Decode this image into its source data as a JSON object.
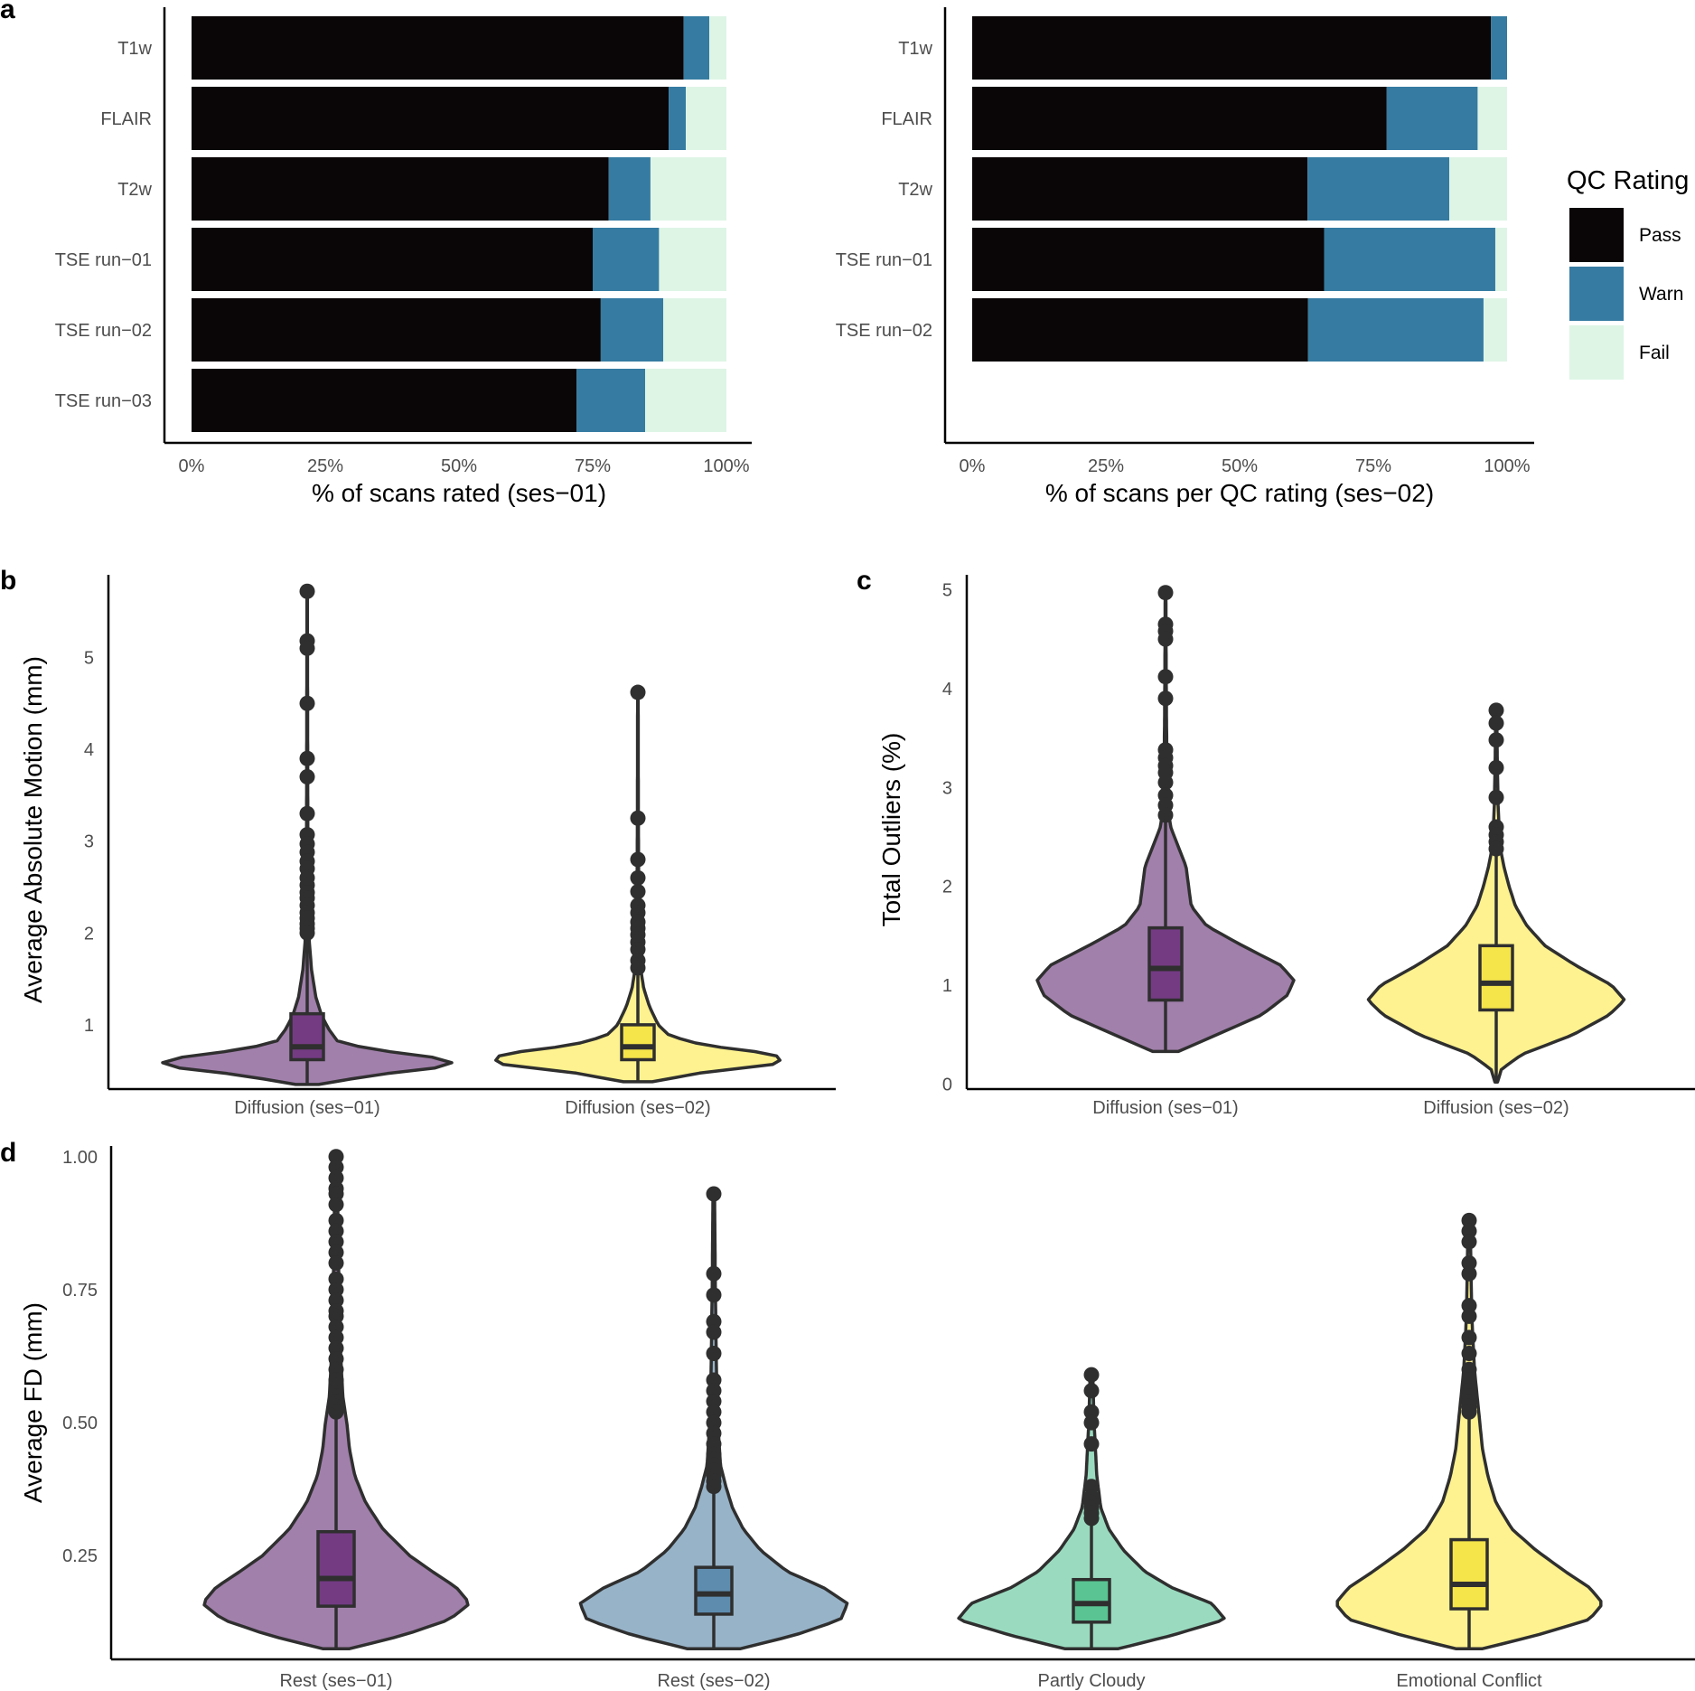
{
  "colors": {
    "pass": "#0a0506",
    "warn": "#357ba2",
    "fail": "#def5e5",
    "violin_purple": "#a180ab",
    "box_purple": "#743b83",
    "violin_yellow": "#fdf28f",
    "box_yellow": "#f5e44a",
    "violin_blue": "#97b3c8",
    "box_blue": "#5e8caf",
    "violin_green": "#9adbc0",
    "box_green": "#5ac493",
    "outline": "#2f2f2f"
  },
  "legend": {
    "title": "QC Rating",
    "items": [
      {
        "label": "Pass",
        "color_key": "pass"
      },
      {
        "label": "Warn",
        "color_key": "warn"
      },
      {
        "label": "Fail",
        "color_key": "fail"
      }
    ]
  },
  "chart_data": [
    {
      "panel": "a",
      "type": "bar",
      "orientation": "horizontal",
      "stacked": true,
      "xlabel": "% of scans rated (ses−01)",
      "xticks": [
        "0%",
        "25%",
        "50%",
        "75%",
        "100%"
      ],
      "xlim": [
        0,
        100
      ],
      "categories": [
        "T1w",
        "FLAIR",
        "T2w",
        "TSE run−01",
        "TSE run−02",
        "TSE run−03"
      ],
      "series": [
        {
          "name": "Pass",
          "values": [
            92,
            89.2,
            78,
            75,
            76.5,
            72
          ]
        },
        {
          "name": "Warn",
          "values": [
            4.8,
            3.2,
            7.8,
            12.4,
            11.7,
            12.8
          ]
        },
        {
          "name": "Fail",
          "values": [
            3.2,
            7.6,
            14.2,
            12.6,
            11.8,
            15.2
          ]
        }
      ]
    },
    {
      "panel": "",
      "type": "bar",
      "orientation": "horizontal",
      "stacked": true,
      "xlabel": "% of scans per QC rating (ses−02)",
      "xticks": [
        "0%",
        "25%",
        "50%",
        "75%",
        "100%"
      ],
      "xlim": [
        0,
        100
      ],
      "categories": [
        "T1w",
        "FLAIR",
        "T2w",
        "TSE run−01",
        "TSE run−02"
      ],
      "series": [
        {
          "name": "Pass",
          "values": [
            97,
            77.5,
            62.7,
            65.8,
            62.8
          ]
        },
        {
          "name": "Warn",
          "values": [
            3,
            17,
            26.5,
            32,
            32.8
          ]
        },
        {
          "name": "Fail",
          "values": [
            0,
            5.5,
            10.8,
            2.2,
            4.4
          ]
        }
      ]
    },
    {
      "panel": "b",
      "type": "violin",
      "ylabel": "Average Absolute Motion (mm)",
      "ylim": [
        0.3,
        5.9
      ],
      "yticks": [
        "1",
        "2",
        "3",
        "4",
        "5"
      ],
      "categories": [
        "Diffusion (ses−01)",
        "Diffusion (ses−02)"
      ],
      "groups": [
        {
          "fill": "violin_purple",
          "box": "box_purple",
          "min": 0.35,
          "q1": 0.62,
          "median": 0.76,
          "q3": 1.12,
          "whisker_hi": 1.95,
          "density": [
            [
              0.35,
              0.08
            ],
            [
              0.45,
              0.45
            ],
            [
              0.55,
              1.0
            ],
            [
              0.62,
              1.0
            ],
            [
              0.7,
              0.6
            ],
            [
              0.8,
              0.22
            ],
            [
              0.95,
              0.15
            ],
            [
              1.1,
              0.1
            ],
            [
              1.3,
              0.06
            ],
            [
              1.6,
              0.03
            ],
            [
              1.9,
              0.015
            ],
            [
              2.2,
              0.008
            ],
            [
              2.8,
              0.005
            ],
            [
              3.5,
              0.004
            ],
            [
              4.5,
              0.003
            ],
            [
              5.2,
              0.002
            ],
            [
              5.7,
              0.002
            ]
          ],
          "outliers": [
            5.72,
            5.18,
            5.1,
            4.5,
            3.9,
            3.7,
            3.3,
            3.07,
            2.97,
            2.88,
            2.78,
            2.7,
            2.6,
            2.52,
            2.44,
            2.38,
            2.3,
            2.22,
            2.16,
            2.1,
            2.05,
            2.0
          ]
        },
        {
          "fill": "violin_yellow",
          "box": "box_yellow",
          "min": 0.38,
          "q1": 0.62,
          "median": 0.76,
          "q3": 1.0,
          "whisker_hi": 1.6,
          "density": [
            [
              0.38,
              0.1
            ],
            [
              0.48,
              0.45
            ],
            [
              0.58,
              1.0
            ],
            [
              0.68,
              0.95
            ],
            [
              0.78,
              0.45
            ],
            [
              0.88,
              0.22
            ],
            [
              1.0,
              0.14
            ],
            [
              1.2,
              0.08
            ],
            [
              1.4,
              0.04
            ],
            [
              1.6,
              0.02
            ],
            [
              2.0,
              0.008
            ],
            [
              2.6,
              0.005
            ],
            [
              3.5,
              0.003
            ],
            [
              4.6,
              0.002
            ]
          ],
          "outliers": [
            4.62,
            3.25,
            2.8,
            2.6,
            2.45,
            2.3,
            2.22,
            2.12,
            2.05,
            1.98,
            1.9,
            1.82,
            1.7,
            1.62
          ]
        }
      ]
    },
    {
      "panel": "c",
      "type": "violin",
      "ylabel": "Total Outliers (%)",
      "ylim": [
        -0.05,
        5.15
      ],
      "yticks": [
        "0",
        "1",
        "2",
        "3",
        "4",
        "5"
      ],
      "categories": [
        "Diffusion (ses−01)",
        "Diffusion (ses−02)"
      ],
      "groups": [
        {
          "fill": "violin_purple",
          "box": "box_purple",
          "min": 0.33,
          "q1": 0.85,
          "median": 1.17,
          "q3": 1.58,
          "whisker_hi": 2.65,
          "density": [
            [
              0.33,
              0.1
            ],
            [
              0.5,
              0.4
            ],
            [
              0.7,
              0.75
            ],
            [
              0.9,
              0.95
            ],
            [
              1.05,
              1.0
            ],
            [
              1.2,
              0.9
            ],
            [
              1.4,
              0.6
            ],
            [
              1.6,
              0.32
            ],
            [
              1.8,
              0.2
            ],
            [
              2.0,
              0.18
            ],
            [
              2.2,
              0.16
            ],
            [
              2.4,
              0.1
            ],
            [
              2.6,
              0.04
            ],
            [
              2.8,
              0.02
            ],
            [
              3.2,
              0.012
            ],
            [
              3.6,
              0.008
            ],
            [
              4.2,
              0.005
            ],
            [
              4.96,
              0.003
            ]
          ],
          "outliers": [
            4.97,
            4.65,
            4.58,
            4.5,
            4.12,
            3.9,
            3.38,
            3.3,
            3.22,
            3.15,
            3.05,
            2.92,
            2.82,
            2.72
          ]
        },
        {
          "fill": "violin_yellow",
          "box": "box_yellow",
          "min": 0.02,
          "q1": 0.75,
          "median": 1.02,
          "q3": 1.4,
          "whisker_hi": 2.35,
          "density": [
            [
              0.02,
              0.01
            ],
            [
              0.15,
              0.04
            ],
            [
              0.3,
              0.2
            ],
            [
              0.5,
              0.6
            ],
            [
              0.7,
              0.88
            ],
            [
              0.85,
              1.0
            ],
            [
              1.0,
              0.9
            ],
            [
              1.2,
              0.62
            ],
            [
              1.4,
              0.38
            ],
            [
              1.6,
              0.24
            ],
            [
              1.8,
              0.15
            ],
            [
              2.0,
              0.1
            ],
            [
              2.2,
              0.06
            ],
            [
              2.4,
              0.03
            ],
            [
              2.8,
              0.015
            ],
            [
              3.3,
              0.008
            ],
            [
              3.78,
              0.004
            ]
          ],
          "outliers": [
            3.78,
            3.65,
            3.48,
            3.2,
            2.9,
            2.6,
            2.52,
            2.45,
            2.38
          ]
        }
      ]
    },
    {
      "panel": "d",
      "type": "violin",
      "ylabel": "Average FD (mm)",
      "ylim": [
        0.055,
        1.02
      ],
      "yticks": [
        "0.25",
        "0.50",
        "0.75",
        "1.00"
      ],
      "categories": [
        "Rest (ses−01)",
        "Rest (ses−02)",
        "Partly Cloudy",
        "Emotional Conflict"
      ],
      "groups": [
        {
          "fill": "violin_purple",
          "box": "box_purple",
          "min": 0.075,
          "q1": 0.155,
          "median": 0.207,
          "q3": 0.295,
          "whisker_hi": 0.51,
          "density": [
            [
              0.075,
              0.1
            ],
            [
              0.1,
              0.5
            ],
            [
              0.13,
              0.85
            ],
            [
              0.16,
              1.0
            ],
            [
              0.19,
              0.9
            ],
            [
              0.22,
              0.72
            ],
            [
              0.25,
              0.55
            ],
            [
              0.3,
              0.35
            ],
            [
              0.35,
              0.22
            ],
            [
              0.4,
              0.14
            ],
            [
              0.45,
              0.1
            ],
            [
              0.5,
              0.08
            ],
            [
              0.55,
              0.05
            ],
            [
              0.65,
              0.03
            ],
            [
              0.8,
              0.018
            ],
            [
              1.0,
              0.008
            ]
          ],
          "outliers": [
            1.0,
            0.98,
            0.96,
            0.94,
            0.93,
            0.91,
            0.88,
            0.86,
            0.84,
            0.82,
            0.8,
            0.77,
            0.75,
            0.73,
            0.71,
            0.7,
            0.68,
            0.66,
            0.64,
            0.62,
            0.6,
            0.58,
            0.57,
            0.55,
            0.54,
            0.53,
            0.52
          ]
        },
        {
          "fill": "violin_blue",
          "box": "box_blue",
          "min": 0.075,
          "q1": 0.14,
          "median": 0.178,
          "q3": 0.228,
          "whisker_hi": 0.37,
          "density": [
            [
              0.075,
              0.2
            ],
            [
              0.1,
              0.6
            ],
            [
              0.13,
              0.95
            ],
            [
              0.16,
              1.0
            ],
            [
              0.19,
              0.82
            ],
            [
              0.22,
              0.55
            ],
            [
              0.26,
              0.35
            ],
            [
              0.3,
              0.22
            ],
            [
              0.34,
              0.14
            ],
            [
              0.38,
              0.09
            ],
            [
              0.42,
              0.05
            ],
            [
              0.5,
              0.03
            ],
            [
              0.6,
              0.02
            ],
            [
              0.75,
              0.012
            ],
            [
              0.93,
              0.006
            ]
          ],
          "outliers": [
            0.93,
            0.78,
            0.74,
            0.69,
            0.67,
            0.63,
            0.58,
            0.56,
            0.54,
            0.52,
            0.5,
            0.48,
            0.46,
            0.44,
            0.43,
            0.42,
            0.41,
            0.4,
            0.39,
            0.38
          ]
        },
        {
          "fill": "violin_green",
          "box": "box_green",
          "min": 0.075,
          "q1": 0.125,
          "median": 0.16,
          "q3": 0.205,
          "whisker_hi": 0.31,
          "density": [
            [
              0.075,
              0.2
            ],
            [
              0.1,
              0.6
            ],
            [
              0.13,
              1.0
            ],
            [
              0.16,
              0.9
            ],
            [
              0.19,
              0.6
            ],
            [
              0.22,
              0.4
            ],
            [
              0.26,
              0.24
            ],
            [
              0.3,
              0.13
            ],
            [
              0.34,
              0.07
            ],
            [
              0.4,
              0.04
            ],
            [
              0.5,
              0.02
            ],
            [
              0.59,
              0.01
            ]
          ],
          "outliers": [
            0.59,
            0.56,
            0.52,
            0.5,
            0.46,
            0.38,
            0.36,
            0.35,
            0.34,
            0.33,
            0.32
          ]
        },
        {
          "fill": "violin_yellow",
          "box": "box_yellow",
          "min": 0.075,
          "q1": 0.15,
          "median": 0.196,
          "q3": 0.28,
          "whisker_hi": 0.58,
          "density": [
            [
              0.075,
              0.1
            ],
            [
              0.1,
              0.5
            ],
            [
              0.13,
              0.9
            ],
            [
              0.16,
              1.0
            ],
            [
              0.19,
              0.9
            ],
            [
              0.22,
              0.72
            ],
            [
              0.26,
              0.5
            ],
            [
              0.3,
              0.32
            ],
            [
              0.35,
              0.2
            ],
            [
              0.4,
              0.14
            ],
            [
              0.45,
              0.1
            ],
            [
              0.5,
              0.08
            ],
            [
              0.55,
              0.06
            ],
            [
              0.6,
              0.04
            ],
            [
              0.7,
              0.02
            ],
            [
              0.88,
              0.008
            ]
          ],
          "outliers": [
            0.88,
            0.86,
            0.84,
            0.8,
            0.78,
            0.72,
            0.7,
            0.66,
            0.63,
            0.6,
            0.58,
            0.56,
            0.55,
            0.54,
            0.53,
            0.52
          ]
        }
      ]
    }
  ]
}
